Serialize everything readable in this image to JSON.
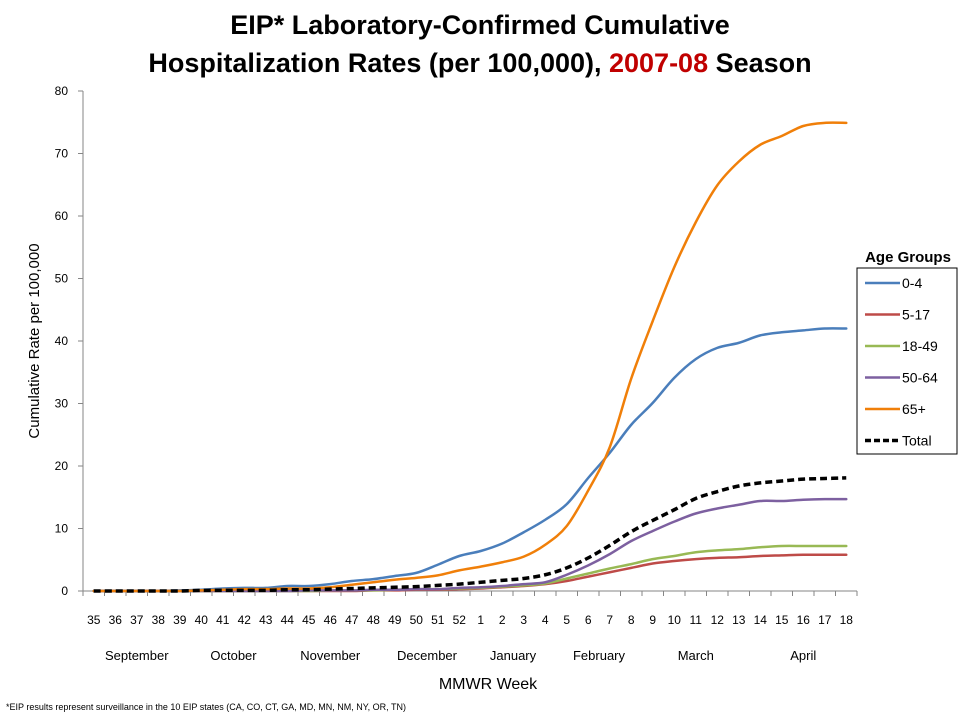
{
  "title": {
    "line1": "EIP* Laboratory-Confirmed Cumulative",
    "line2_prefix": "Hospitalization Rates (per 100,000), ",
    "season": "2007-08",
    "line2_suffix": " Season"
  },
  "footnote": "*EIP results represent surveillance in the 10 EIP states (CA, CO, CT, GA, MD, MN, NM, NY, OR, TN)",
  "colors": {
    "s0_4": "#4a7ebb",
    "s5_17": "#be4b48",
    "s18_49": "#98b954",
    "s50_64": "#7d60a0",
    "s65": "#f07f09",
    "total": "#000000"
  },
  "chart_data": {
    "type": "line",
    "title": "EIP* Laboratory-Confirmed Cumulative Hospitalization Rates (per 100,000), 2007-08 Season",
    "xlabel": "MMWR Week",
    "ylabel": "Cumulative Rate per 100,000",
    "ylim": [
      0,
      80
    ],
    "yticks": [
      0,
      10,
      20,
      30,
      40,
      50,
      60,
      70,
      80
    ],
    "grid": false,
    "legend_title": "Age Groups",
    "legend_position": "right",
    "categories": [
      "35",
      "36",
      "37",
      "38",
      "39",
      "40",
      "41",
      "42",
      "43",
      "44",
      "45",
      "46",
      "47",
      "48",
      "49",
      "50",
      "51",
      "52",
      "1",
      "2",
      "3",
      "4",
      "5",
      "6",
      "7",
      "8",
      "9",
      "10",
      "11",
      "12",
      "13",
      "14",
      "15",
      "16",
      "17",
      "18"
    ],
    "months": [
      {
        "name": "September",
        "start": 0,
        "end": 4
      },
      {
        "name": "October",
        "start": 5,
        "end": 8
      },
      {
        "name": "November",
        "start": 9,
        "end": 13
      },
      {
        "name": "December",
        "start": 14,
        "end": 17
      },
      {
        "name": "January",
        "start": 18,
        "end": 21
      },
      {
        "name": "February",
        "start": 22,
        "end": 25
      },
      {
        "name": "March",
        "start": 26,
        "end": 30
      },
      {
        "name": "April",
        "start": 31,
        "end": 35
      }
    ],
    "series": [
      {
        "name": "0-4",
        "style": "solid",
        "values": [
          0,
          0,
          0,
          0,
          0.1,
          0.2,
          0.4,
          0.5,
          0.5,
          0.8,
          0.8,
          1.1,
          1.6,
          1.9,
          2.4,
          2.9,
          4.2,
          5.6,
          6.4,
          7.6,
          9.4,
          11.4,
          13.9,
          18.1,
          22.1,
          26.6,
          30.1,
          34.1,
          37.1,
          38.9,
          39.7,
          40.9,
          41.4,
          41.7,
          42.0,
          42.0
        ]
      },
      {
        "name": "5-17",
        "style": "solid",
        "values": [
          0,
          0,
          0,
          0,
          0,
          0,
          0,
          0,
          0,
          0,
          0,
          0,
          0,
          0.1,
          0.1,
          0.2,
          0.2,
          0.3,
          0.4,
          0.6,
          0.8,
          1.1,
          1.6,
          2.3,
          3.0,
          3.7,
          4.4,
          4.8,
          5.1,
          5.3,
          5.4,
          5.6,
          5.7,
          5.8,
          5.8,
          5.8
        ]
      },
      {
        "name": "18-49",
        "style": "solid",
        "values": [
          0,
          0,
          0,
          0,
          0,
          0,
          0,
          0,
          0,
          0,
          0,
          0.1,
          0.1,
          0.1,
          0.2,
          0.3,
          0.3,
          0.4,
          0.5,
          0.7,
          0.9,
          1.2,
          2.0,
          2.8,
          3.6,
          4.3,
          5.1,
          5.6,
          6.2,
          6.5,
          6.7,
          7.0,
          7.2,
          7.2,
          7.2,
          7.2
        ]
      },
      {
        "name": "50-64",
        "style": "solid",
        "values": [
          0,
          0,
          0,
          0,
          0,
          0,
          0,
          0,
          0,
          0,
          0.1,
          0.1,
          0.1,
          0.2,
          0.2,
          0.3,
          0.3,
          0.5,
          0.6,
          0.8,
          1.1,
          1.4,
          2.6,
          4.1,
          5.9,
          8.0,
          9.6,
          11.1,
          12.4,
          13.2,
          13.8,
          14.4,
          14.4,
          14.6,
          14.7,
          14.7
        ]
      },
      {
        "name": "65+",
        "style": "solid",
        "values": [
          0,
          0,
          0,
          0,
          0,
          0.1,
          0.2,
          0.3,
          0.3,
          0.4,
          0.4,
          0.6,
          1.0,
          1.4,
          1.8,
          2.1,
          2.5,
          3.3,
          3.9,
          4.6,
          5.5,
          7.4,
          10.4,
          16.1,
          23.0,
          34.0,
          43.2,
          51.8,
          59.0,
          64.9,
          68.7,
          71.4,
          72.8,
          74.4,
          74.9,
          74.9
        ]
      },
      {
        "name": "Total",
        "style": "dashed",
        "values": [
          0,
          0,
          0,
          0,
          0,
          0.1,
          0.1,
          0.1,
          0.1,
          0.2,
          0.2,
          0.3,
          0.4,
          0.5,
          0.6,
          0.7,
          0.9,
          1.1,
          1.4,
          1.7,
          2.0,
          2.6,
          3.7,
          5.3,
          7.3,
          9.5,
          11.3,
          13.0,
          14.8,
          15.9,
          16.8,
          17.3,
          17.6,
          17.9,
          18.0,
          18.1
        ]
      }
    ]
  }
}
